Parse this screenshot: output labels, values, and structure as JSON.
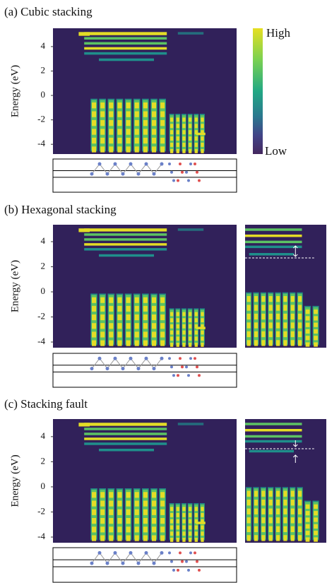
{
  "chart_data": [
    {
      "type": "heatmap",
      "title": "(a) Cubic stacking",
      "ylabel": "Energy (eV)",
      "ylim": [
        -4.8,
        5.5
      ],
      "yticks": [
        4,
        2,
        0,
        -2,
        -4
      ],
      "colorbar": {
        "high": "High",
        "low": "Low"
      }
    },
    {
      "type": "heatmap",
      "title": "(b) Hexagonal stacking",
      "ylabel": "Energy (eV)",
      "ylim": [
        -4.45,
        5.35
      ],
      "yticks": [
        4,
        2,
        0,
        -2,
        -4
      ]
    },
    {
      "type": "heatmap",
      "title": "(c) Stacking fault",
      "ylabel": "Energy (eV)",
      "ylim": [
        -4.45,
        5.4
      ],
      "yticks": [
        4,
        2,
        0,
        -2,
        -4
      ]
    }
  ]
}
